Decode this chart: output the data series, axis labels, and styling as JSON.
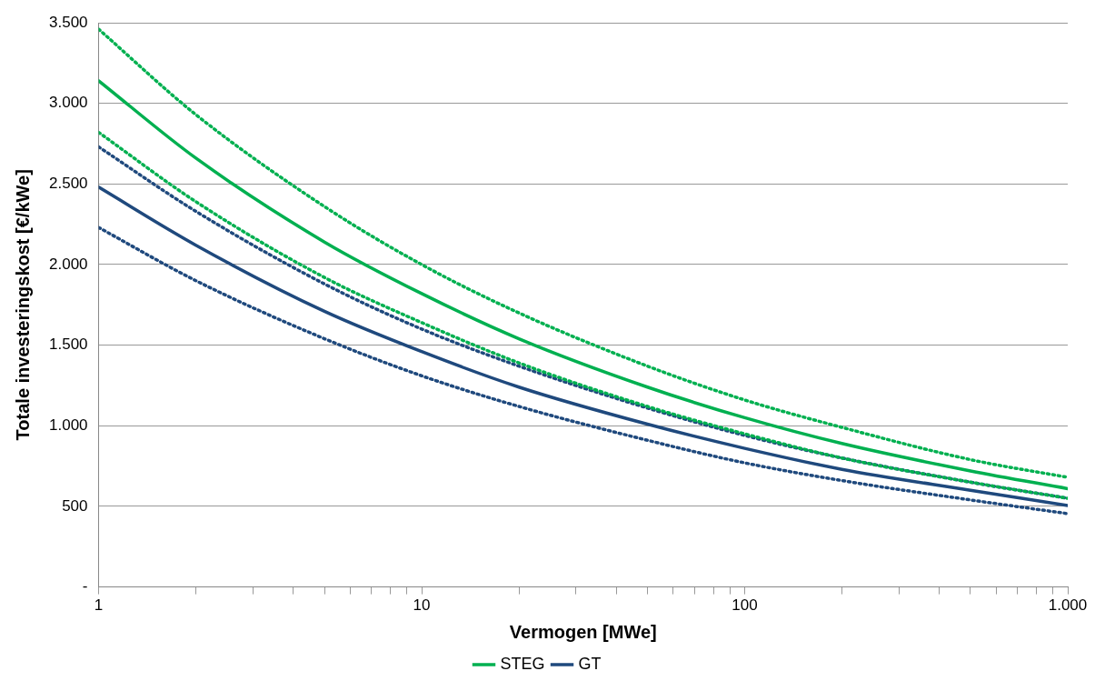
{
  "chart_data": {
    "type": "line",
    "xlabel": "Vermogen [MWe]",
    "ylabel": "Totale investeringskost [€/kWe]",
    "x": [
      1,
      2,
      5,
      10,
      20,
      50,
      100,
      200,
      500,
      1000
    ],
    "series": [
      {
        "name": "STEG",
        "color": "#00b050",
        "values": [
          3140,
          2660,
          2140,
          1820,
          1540,
          1240,
          1050,
          890,
          720,
          610
        ]
      },
      {
        "color": "#00b050",
        "line_style": "dotted",
        "values": [
          3460,
          2930,
          2360,
          2000,
          1700,
          1370,
          1160,
          990,
          790,
          680
        ]
      },
      {
        "color": "#00b050",
        "line_style": "dotted",
        "values": [
          2820,
          2390,
          1920,
          1640,
          1390,
          1120,
          950,
          800,
          650,
          550
        ]
      },
      {
        "name": "GT",
        "color": "#1f497d",
        "values": [
          2480,
          2120,
          1710,
          1460,
          1240,
          1010,
          860,
          730,
          600,
          505
        ]
      },
      {
        "color": "#1f497d",
        "line_style": "dotted",
        "values": [
          2730,
          2330,
          1880,
          1600,
          1370,
          1110,
          940,
          800,
          650,
          550
        ]
      },
      {
        "color": "#1f497d",
        "line_style": "dotted",
        "values": [
          2230,
          1900,
          1540,
          1310,
          1120,
          910,
          770,
          660,
          540,
          455
        ]
      }
    ],
    "log": "x",
    "xlim": [
      1,
      1000
    ],
    "xticks": [
      1,
      {
        "value": 2,
        "label": null
      },
      {
        "value": 3,
        "label": null
      },
      {
        "value": 4,
        "label": null
      },
      {
        "value": 5,
        "label": null
      },
      {
        "value": 6,
        "label": null
      },
      {
        "value": 7,
        "label": null
      },
      {
        "value": 8,
        "label": null
      },
      {
        "value": 9,
        "label": null
      },
      10,
      {
        "value": 20,
        "label": null
      },
      {
        "value": 30,
        "label": null
      },
      {
        "value": 40,
        "label": null
      },
      {
        "value": 50,
        "label": null
      },
      {
        "value": 60,
        "label": null
      },
      {
        "value": 70,
        "label": null
      },
      {
        "value": 80,
        "label": null
      },
      {
        "value": 90,
        "label": null
      },
      100,
      {
        "value": 200,
        "label": null
      },
      {
        "value": 300,
        "label": null
      },
      {
        "value": 400,
        "label": null
      },
      {
        "value": 500,
        "label": null
      },
      {
        "value": 600,
        "label": null
      },
      {
        "value": 700,
        "label": null
      },
      {
        "value": 800,
        "label": null
      },
      {
        "value": 900,
        "label": null
      },
      {
        "value": 1000,
        "label": "1.000"
      }
    ],
    "ylim": [
      0,
      3500
    ],
    "yticks": [
      {
        "value": 0,
        "label": "-"
      },
      500,
      {
        "value": 1000,
        "label": "1.000"
      },
      {
        "value": 1500,
        "label": "1.500"
      },
      {
        "value": 2000,
        "label": "2.000"
      },
      {
        "value": 2500,
        "label": "2.500"
      },
      {
        "value": 3000,
        "label": "3.000"
      },
      {
        "value": 3500,
        "label": "3.500"
      }
    ],
    "grid": "y",
    "legend": "bottom",
    "marker": "none",
    "line_style": "solid"
  }
}
